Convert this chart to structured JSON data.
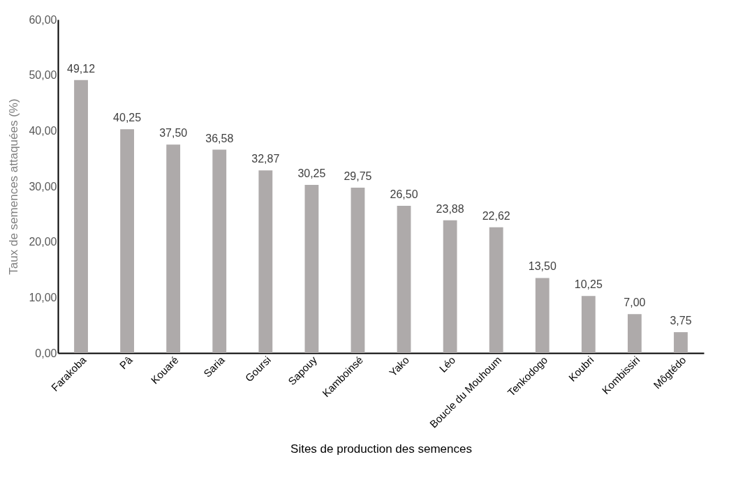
{
  "chart_data": {
    "type": "bar",
    "xlabel": "Sites de production des semences",
    "ylabel": "Taux de semences attaquées (%)",
    "categories": [
      "Farakoba",
      "Pâ",
      "Kouaré",
      "Saria",
      "Goursi",
      "Sapouy",
      "Kamboinsé",
      "Yako",
      "Léo",
      "Boucle du Mouhoum",
      "Tenkodogo",
      "Koubri",
      "Kombissiri",
      "Môgtédo"
    ],
    "values": [
      49.12,
      40.25,
      37.5,
      36.58,
      32.87,
      30.25,
      29.75,
      26.5,
      23.88,
      22.62,
      13.5,
      10.25,
      7.0,
      3.75
    ],
    "value_labels": [
      "49,12",
      "40,25",
      "37,50",
      "36,58",
      "32,87",
      "30,25",
      "29,75",
      "26,50",
      "23,88",
      "22,62",
      "13,50",
      "10,25",
      "7,00",
      "3,75"
    ],
    "color": "#aeaaaa",
    "ylim": [
      0,
      60
    ],
    "yticks": [
      {
        "value": 0,
        "label": "0,00"
      },
      {
        "value": 10,
        "label": "10,00"
      },
      {
        "value": 20,
        "label": "20,00"
      },
      {
        "value": 30,
        "label": "30,00"
      },
      {
        "value": 40,
        "label": "40,00"
      },
      {
        "value": 50,
        "label": "50,00"
      },
      {
        "value": 60,
        "label": "60,00"
      }
    ],
    "grid": false
  }
}
